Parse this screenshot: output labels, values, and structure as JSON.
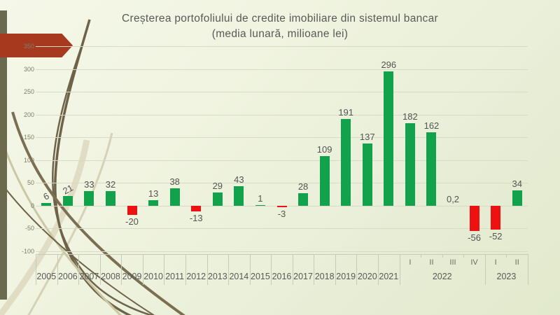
{
  "slide": {
    "title_line1": "Creșterea portofoliului de credite imobiliare din sistemul bancar",
    "title_line2": "(media lunară, milioane lei)",
    "title_color": "#595959",
    "side_stripe_color": "#6B694E",
    "arrow_banner_color": "#A73A1E"
  },
  "chart_data": {
    "type": "bar",
    "title": "Creșterea portofoliului de credite imobiliare din sistemul bancar (media lunară, milioane lei)",
    "ylabel": "",
    "xlabel": "",
    "ylim": [
      -100,
      350
    ],
    "yticks": [
      350,
      300,
      250,
      200,
      150,
      100,
      50,
      0,
      -50,
      -100
    ],
    "grid": true,
    "legend": "none",
    "positive_color": "#12A24C",
    "negative_color": "#EE1111",
    "label_color": "#545454",
    "categories_level1": [
      "",
      "",
      "",
      "",
      "",
      "",
      "",
      "",
      "",
      "",
      "",
      "",
      "",
      "",
      "",
      "",
      "",
      "I",
      "II",
      "III",
      "IV",
      "I",
      "II"
    ],
    "category_groups": [
      {
        "label": "2005",
        "span": 1
      },
      {
        "label": "2006",
        "span": 1
      },
      {
        "label": "2007",
        "span": 1
      },
      {
        "label": "2008",
        "span": 1
      },
      {
        "label": "2009",
        "span": 1
      },
      {
        "label": "2010",
        "span": 1
      },
      {
        "label": "2011",
        "span": 1
      },
      {
        "label": "2012",
        "span": 1
      },
      {
        "label": "2013",
        "span": 1
      },
      {
        "label": "2014",
        "span": 1
      },
      {
        "label": "2015",
        "span": 1
      },
      {
        "label": "2016",
        "span": 1
      },
      {
        "label": "2017",
        "span": 1
      },
      {
        "label": "2018",
        "span": 1
      },
      {
        "label": "2019",
        "span": 1
      },
      {
        "label": "2020",
        "span": 1
      },
      {
        "label": "2021",
        "span": 1
      },
      {
        "label": "2022",
        "span": 4
      },
      {
        "label": "2023",
        "span": 2
      }
    ],
    "values": [
      6,
      21,
      33,
      32,
      -20,
      13,
      38,
      -13,
      29,
      43,
      1,
      -3,
      28,
      109,
      191,
      137,
      296,
      182,
      162,
      0.2,
      -56,
      -52,
      34
    ],
    "value_labels": [
      "6",
      "21",
      "33",
      "32",
      "-20",
      "13",
      "38",
      "-13",
      "29",
      "43",
      "1",
      "-3",
      "28",
      "109",
      "191",
      "137",
      "296",
      "182",
      "162",
      "0,2",
      "-56",
      "-52",
      "34"
    ]
  }
}
